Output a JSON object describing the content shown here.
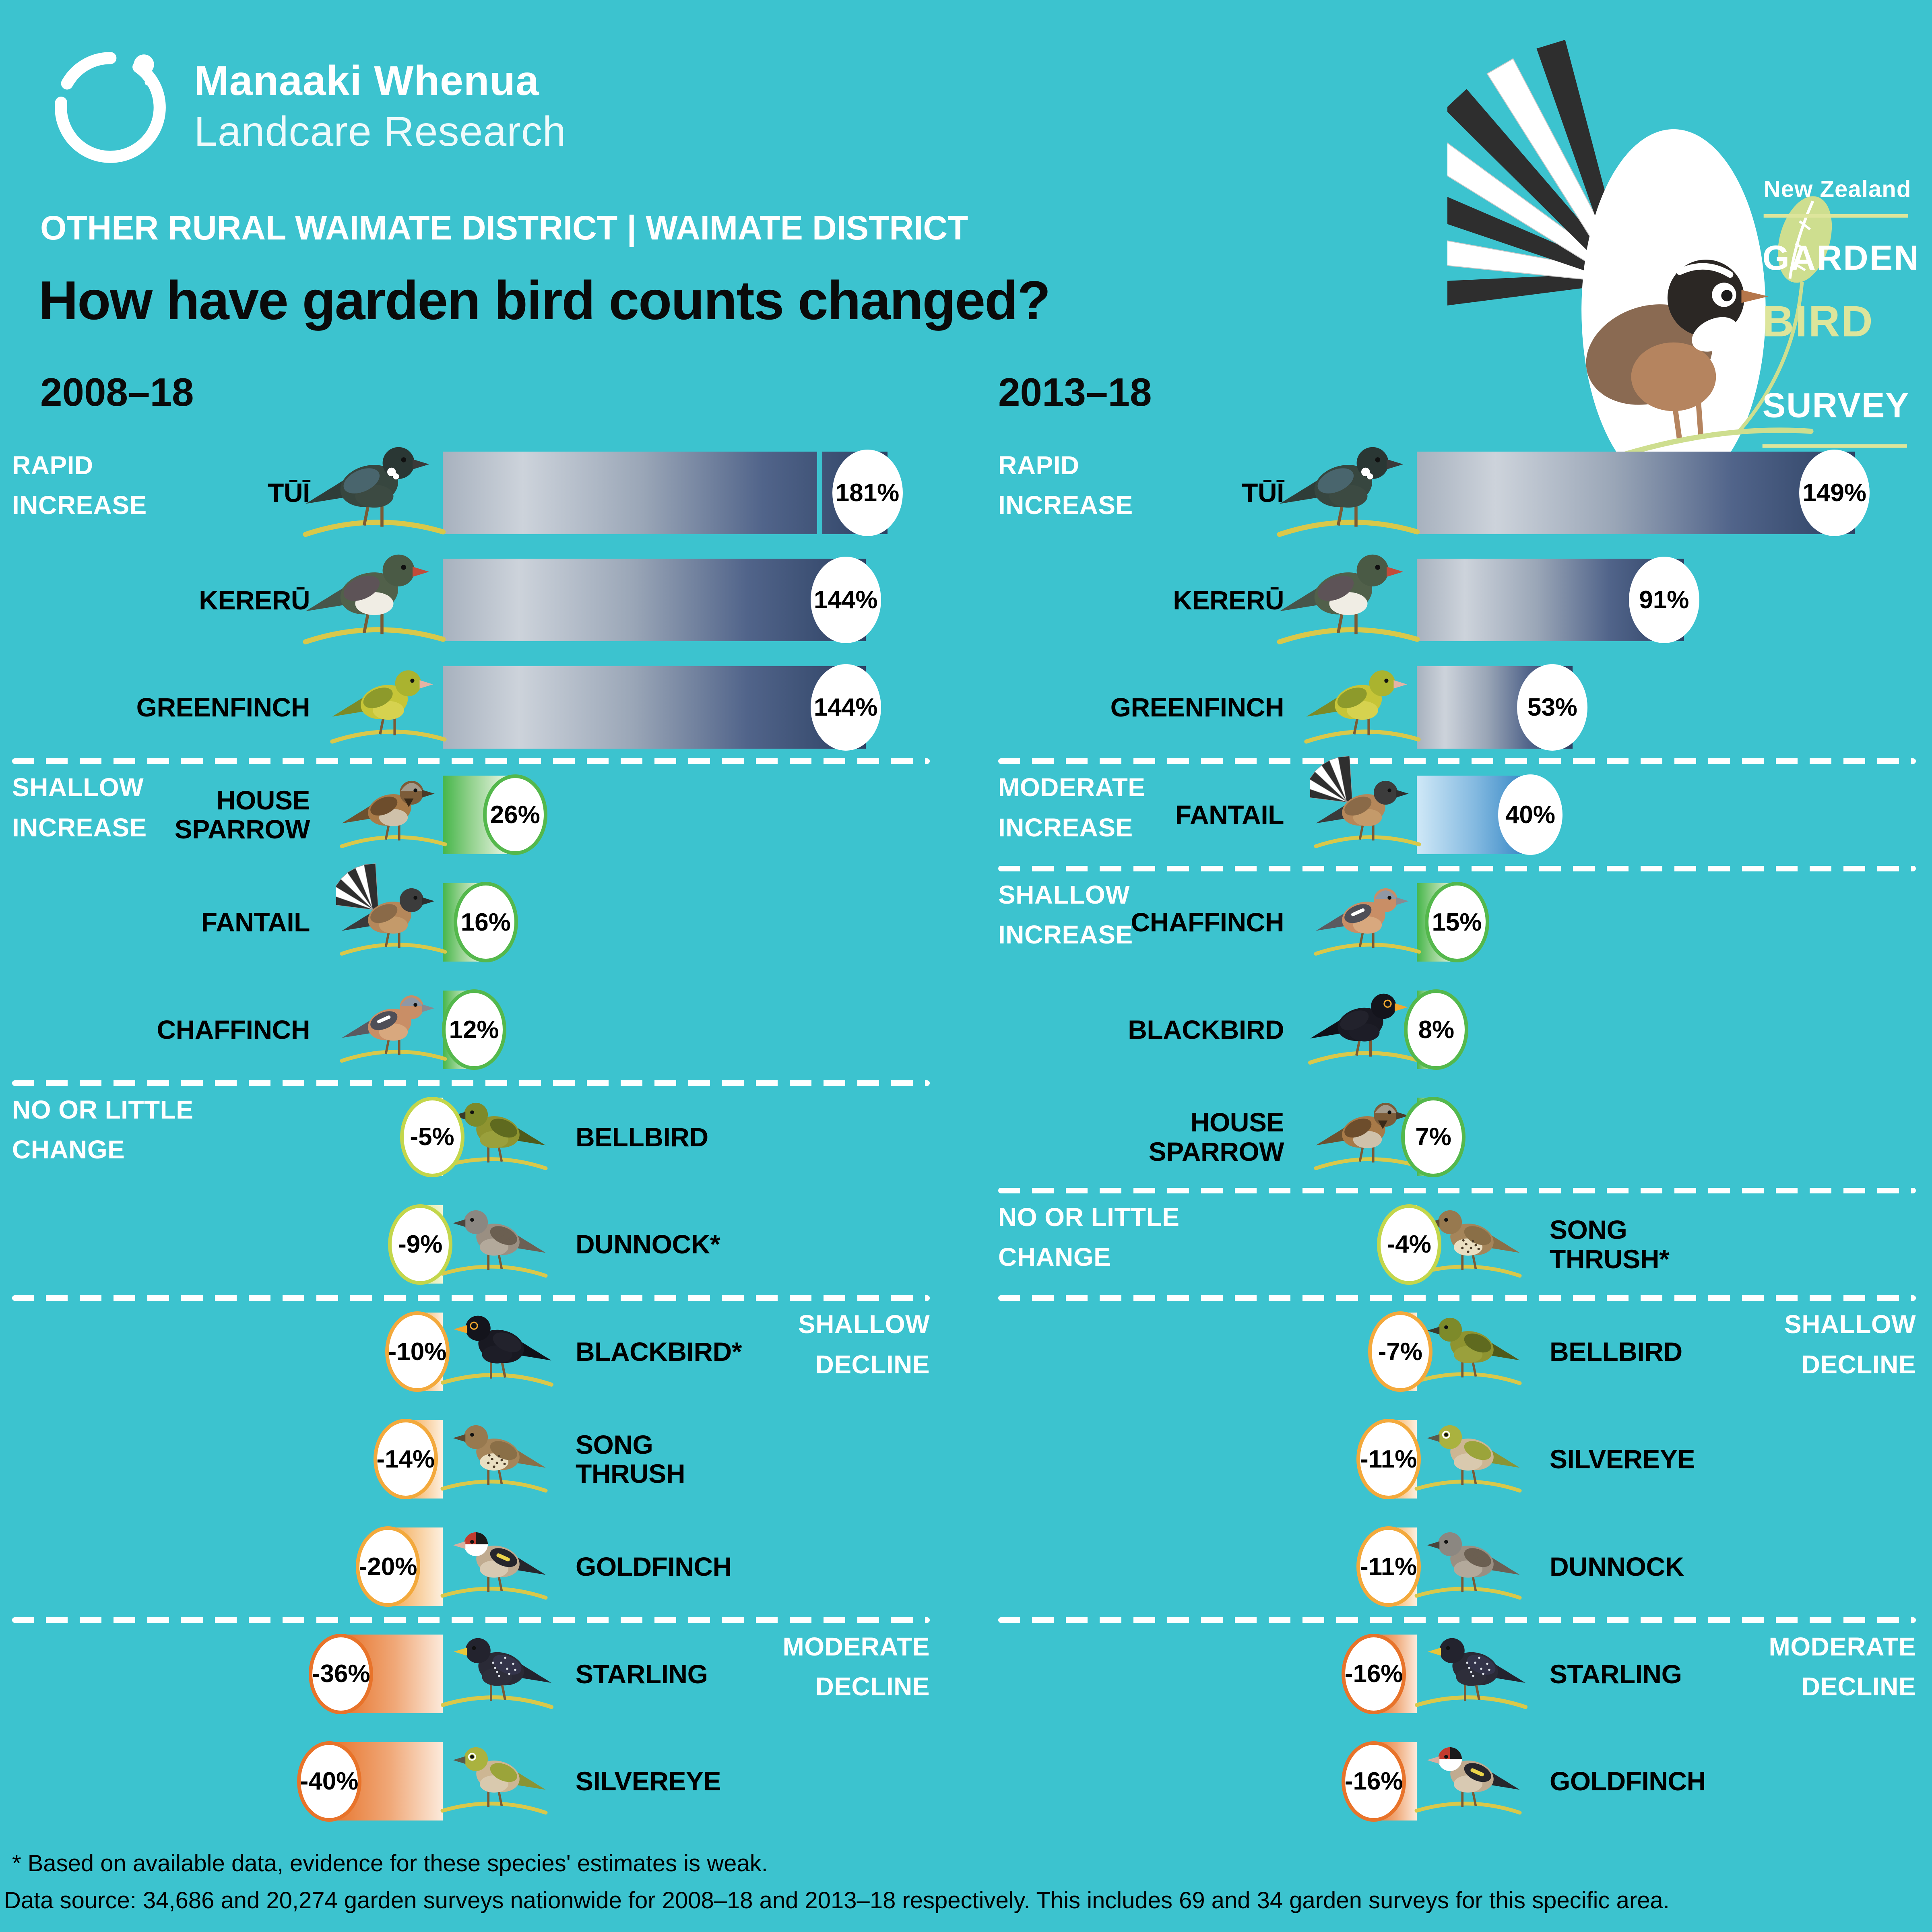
{
  "colors": {
    "background": "#3cc3cf",
    "navy_dark": "#2d4163",
    "navy_light": "#cdd3db",
    "green_bar": "#45b649",
    "green_ring": "#54b84c",
    "blue_bar": "#2a7fc1",
    "nochange_ring": "#c3d64b",
    "gold_ring": "#f3a93c",
    "orange_ring": "#e8732a",
    "survey_accent": "#dde59b",
    "branch": "#d9c84a",
    "text_white": "#ffffff",
    "text_black": "#000000"
  },
  "header": {
    "logo_line1": "Manaaki Whenua",
    "logo_line2": "Landcare Research",
    "district": "OTHER RURAL WAIMATE DISTRICT | WAIMATE DISTRICT",
    "title": "How have garden bird counts changed?",
    "left_period": "2008–18",
    "right_period": "2013–18"
  },
  "survey_logo": {
    "line1": "New Zealand",
    "line2": "GARDEN",
    "line3": "BIRD",
    "line4": "SURVEY"
  },
  "bands": {
    "rapid-increase": "RAPID\nINCREASE",
    "moderate-increase": "MODERATE\nINCREASE",
    "shallow-increase": "SHALLOW\nINCREASE",
    "no-change": "NO OR LITTLE\nCHANGE",
    "shallow-decline": "SHALLOW\nDECLINE",
    "moderate-decline": "MODERATE\nDECLINE"
  },
  "chart_data": [
    {
      "type": "bar",
      "title": "2008–18",
      "unit": "percent change in garden bird counts",
      "species": [
        "tui",
        "kereru",
        "greenfinch",
        "housesparrow",
        "fantail",
        "chaffinch",
        "bellbird",
        "dunnock",
        "blackbird",
        "songthrush",
        "goldfinch",
        "starling",
        "silvereye"
      ],
      "categories": [
        "TŪĪ",
        "KERERŪ",
        "GREENFINCH",
        "HOUSE\nSPARROW",
        "FANTAIL",
        "CHAFFINCH",
        "BELLBIRD",
        "DUNNOCK*",
        "BLACKBIRD*",
        "SONG\nTHRUSH",
        "GOLDFINCH",
        "STARLING",
        "SILVEREYE"
      ],
      "values": [
        181,
        144,
        144,
        26,
        16,
        12,
        -5,
        -9,
        -10,
        -14,
        -20,
        -36,
        -40
      ],
      "value_labels": [
        "181%",
        "144%",
        "144%",
        "26%",
        "16%",
        "12%",
        "-5%",
        "-9%",
        "-10%",
        "-14%",
        "-20%",
        "-36%",
        "-40%"
      ],
      "bands": [
        "rapid-increase",
        "rapid-increase",
        "rapid-increase",
        "shallow-increase",
        "shallow-increase",
        "shallow-increase",
        "no-change",
        "no-change",
        "shallow-decline",
        "shallow-decline",
        "shallow-decline",
        "moderate-decline",
        "moderate-decline"
      ],
      "truncated": [
        true,
        false,
        false,
        false,
        false,
        false,
        false,
        false,
        false,
        false,
        false,
        false,
        false
      ]
    },
    {
      "type": "bar",
      "title": "2013–18",
      "unit": "percent change in garden bird counts",
      "species": [
        "tui",
        "kereru",
        "greenfinch",
        "fantail",
        "chaffinch",
        "blackbird",
        "housesparrow",
        "songthrush",
        "bellbird",
        "silvereye",
        "dunnock",
        "starling",
        "goldfinch"
      ],
      "categories": [
        "TŪĪ",
        "KERERŪ",
        "GREENFINCH",
        "FANTAIL",
        "CHAFFINCH",
        "BLACKBIRD",
        "HOUSE\nSPARROW",
        "SONG\nTHRUSH*",
        "BELLBIRD",
        "SILVEREYE",
        "DUNNOCK",
        "STARLING",
        "GOLDFINCH"
      ],
      "values": [
        149,
        91,
        53,
        40,
        15,
        8,
        7,
        -4,
        -7,
        -11,
        -11,
        -16,
        -16
      ],
      "value_labels": [
        "149%",
        "91%",
        "53%",
        "40%",
        "15%",
        "8%",
        "7%",
        "-4%",
        "-7%",
        "-11%",
        "-11%",
        "-16%",
        "-16%"
      ],
      "bands": [
        "rapid-increase",
        "rapid-increase",
        "rapid-increase",
        "moderate-increase",
        "shallow-increase",
        "shallow-increase",
        "shallow-increase",
        "no-change",
        "shallow-decline",
        "shallow-decline",
        "shallow-decline",
        "moderate-decline",
        "moderate-decline"
      ],
      "truncated": [
        false,
        false,
        false,
        false,
        false,
        false,
        false,
        false,
        false,
        false,
        false,
        false,
        false
      ]
    }
  ],
  "footnote": "* Based on available data, evidence for these species' estimates is weak.",
  "datasource": "Data source: 34,686 and 20,274 garden surveys nationwide for 2008–18 and 2013–18 respectively. This includes 69 and 34 garden surveys for this specific area.",
  "bird_colors": {
    "tui": {
      "body": "#37463f",
      "head": "#2a3734",
      "wing": "#49656d",
      "belly": "#3c4a42",
      "beak": "#3a3a3a",
      "tail": "#2f3d38",
      "extra": "tuft"
    },
    "kereru": {
      "body": "#51604a",
      "head": "#4a5a45",
      "wing": "#5d5357",
      "belly": "#f0ede4",
      "beak": "#c24b3a",
      "tail": "#47554a"
    },
    "greenfinch": {
      "body": "#c6c538",
      "head": "#aab32f",
      "wing": "#8d9a2b",
      "belly": "#d6d24f",
      "beak": "#e5b3a4",
      "tail": "#7c8a26"
    },
    "housesparrow": {
      "body": "#a87a48",
      "head": "#7c5c39",
      "crown": "#a39a8b",
      "wing": "#6d4d2c",
      "belly": "#cfc1aa",
      "beak": "#4a3a28",
      "tail": "#6d512f",
      "extra": "bib"
    },
    "fantail": {
      "body": "#b5875a",
      "head": "#3c3c3c",
      "wing": "#8a6a48",
      "belly": "#c49a6a",
      "beak": "#2d2d2d",
      "tail": "#3a3a3a",
      "extra": "fan"
    },
    "chaffinch": {
      "body": "#c98e66",
      "head": "#c98e66",
      "crown": "#8f98a5",
      "wing": "#4e4e57",
      "belly": "#d8a87e",
      "beak": "#8a8a90",
      "tail": "#5a5a60",
      "extra": "wingbar"
    },
    "bellbird": {
      "body": "#8f9430",
      "head": "#7d8a2a",
      "wing": "#5f6a1f",
      "belly": "#9aa03c",
      "beak": "#3a3a2a",
      "tail": "#4f5a1a"
    },
    "dunnock": {
      "body": "#9a8f82",
      "head": "#8b8781",
      "wing": "#6b5f51",
      "belly": "#b3a99b",
      "beak": "#4a443c",
      "tail": "#6b6054",
      "extra": "streaks"
    },
    "blackbird": {
      "body": "#191922",
      "head": "#14141c",
      "wing": "#22222c",
      "belly": "#1d1d27",
      "beak": "#f2a72e",
      "tail": "#101018",
      "extra": "eyering"
    },
    "songthrush": {
      "body": "#a5855a",
      "head": "#97794f",
      "wing": "#8a6f47",
      "belly": "#eadfc2",
      "beak": "#5a4a32",
      "tail": "#8a6f47",
      "extra": "speckles"
    },
    "goldfinch": {
      "body": "#c0ab90",
      "head": "#ffffff",
      "wing": "#26262c",
      "belly": "#d8c9b2",
      "beak": "#d8b0a0",
      "tail": "#26262c",
      "extra": "goldfinch"
    },
    "starling": {
      "body": "#2a2a36",
      "head": "#23232e",
      "wing": "#34344a",
      "belly": "#2e2e3a",
      "beak": "#e8c53a",
      "tail": "#23232e",
      "extra": "dots"
    },
    "silvereye": {
      "body": "#cdb693",
      "head": "#aab23f",
      "wing": "#9ba43a",
      "belly": "#d9c9ae",
      "beak": "#5a5a4a",
      "tail": "#8a9434",
      "extra": "eyering-white"
    }
  }
}
